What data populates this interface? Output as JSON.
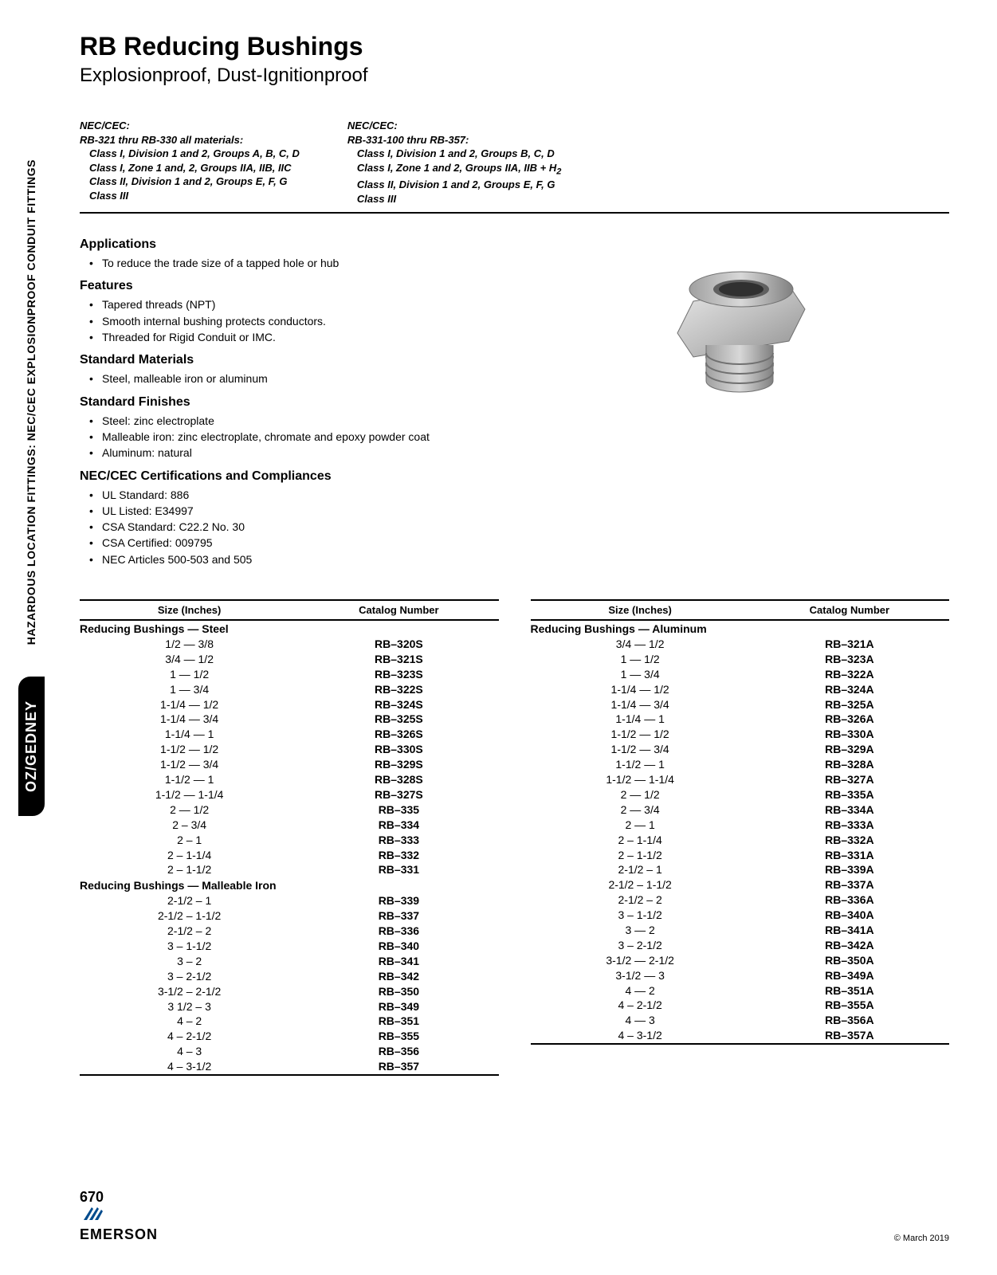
{
  "title": "RB Reducing Bushings",
  "subtitle": "Explosionproof, Dust-Ignitionproof",
  "sidebar_top": "HAZARDOUS LOCATION FITTINGS: NEC/CEC EXPLOSIONPROOF CONDUIT FITTINGS",
  "sidebar_logo": "OZ/GEDNEY",
  "nec1": {
    "head": "NEC/CEC:",
    "l1": "RB-321 thru RB-330 all materials:",
    "l2": "Class I, Division 1 and 2, Groups A, B, C, D",
    "l3": "Class I, Zone 1 and, 2, Groups IIA, IIB, IIC",
    "l4": "Class II, Division 1 and 2, Groups E, F, G",
    "l5": "Class III"
  },
  "nec2": {
    "head": "NEC/CEC:",
    "l1": "RB-331-100 thru RB-357:",
    "l2": "Class I, Division 1 and 2, Groups B, C, D",
    "l3": "Class I, Zone 1 and 2, Groups IIA, IIB + H",
    "l3sub": "2",
    "l4": "Class II, Division 1 and 2, Groups E, F, G",
    "l5": "Class III"
  },
  "sections": {
    "applications_h": "Applications",
    "applications": [
      "To reduce the trade size of a tapped hole or hub"
    ],
    "features_h": "Features",
    "features": [
      "Tapered threads (NPT)",
      "Smooth internal bushing protects conductors.",
      "Threaded for Rigid Conduit or IMC."
    ],
    "materials_h": "Standard Materials",
    "materials": [
      "Steel, malleable iron or aluminum"
    ],
    "finishes_h": "Standard Finishes",
    "finishes": [
      "Steel: zinc electroplate",
      "Malleable iron: zinc electroplate, chromate and epoxy powder coat",
      "Aluminum: natural"
    ],
    "cert_h": "NEC/CEC Certifications and Compliances",
    "cert": [
      "UL Standard: 886",
      "UL Listed: E34997",
      "CSA Standard: C22.2 No. 30",
      "CSA Certified: 009795",
      "NEC Articles 500-503 and 505"
    ]
  },
  "table_headers": {
    "size": "Size (Inches)",
    "cat": "Catalog Number"
  },
  "groups_left": [
    {
      "title": "Reducing Bushings — Steel",
      "rows": [
        [
          "1/2 — 3/8",
          "RB–320S"
        ],
        [
          "3/4 — 1/2",
          "RB–321S"
        ],
        [
          "1 — 1/2",
          "RB–323S"
        ],
        [
          "1 — 3/4",
          "RB–322S"
        ],
        [
          "1-1/4 — 1/2",
          "RB–324S"
        ],
        [
          "1-1/4 — 3/4",
          "RB–325S"
        ],
        [
          "1-1/4 — 1",
          "RB–326S"
        ],
        [
          "1-1/2 — 1/2",
          "RB–330S"
        ],
        [
          "1-1/2 — 3/4",
          "RB–329S"
        ],
        [
          "1-1/2 — 1",
          "RB–328S"
        ],
        [
          "1-1/2 — 1-1/4",
          "RB–327S"
        ],
        [
          "2 — 1/2",
          "RB–335"
        ],
        [
          "2 – 3/4",
          "RB–334"
        ],
        [
          "2 – 1",
          "RB–333"
        ],
        [
          "2 – 1-1/4",
          "RB–332"
        ],
        [
          "2 – 1-1/2",
          "RB–331"
        ]
      ]
    },
    {
      "title": "Reducing Bushings — Malleable Iron",
      "rows": [
        [
          "2-1/2 – 1",
          "RB–339"
        ],
        [
          "2-1/2 – 1-1/2",
          "RB–337"
        ],
        [
          "2-1/2 – 2",
          "RB–336"
        ],
        [
          "3 – 1-1/2",
          "RB–340"
        ],
        [
          "3 – 2",
          "RB–341"
        ],
        [
          "3 – 2-1/2",
          "RB–342"
        ],
        [
          "3-1/2 – 2-1/2",
          "RB–350"
        ],
        [
          "3 1/2 – 3",
          "RB–349"
        ],
        [
          "4 – 2",
          "RB–351"
        ],
        [
          "4 – 2-1/2",
          "RB–355"
        ],
        [
          "4 – 3",
          "RB–356"
        ],
        [
          "4 – 3-1/2",
          "RB–357"
        ]
      ]
    }
  ],
  "groups_right": [
    {
      "title": "Reducing Bushings — Aluminum",
      "rows": [
        [
          "3/4 — 1/2",
          "RB–321A"
        ],
        [
          "1 — 1/2",
          "RB–323A"
        ],
        [
          "1 — 3/4",
          "RB–322A"
        ],
        [
          "1-1/4 — 1/2",
          "RB–324A"
        ],
        [
          "1-1/4 — 3/4",
          "RB–325A"
        ],
        [
          "1-1/4 — 1",
          "RB–326A"
        ],
        [
          "1-1/2 — 1/2",
          "RB–330A"
        ],
        [
          "1-1/2 — 3/4",
          "RB–329A"
        ],
        [
          "1-1/2 — 1",
          "RB–328A"
        ],
        [
          "1-1/2 — 1-1/4",
          "RB–327A"
        ],
        [
          "2 — 1/2",
          "RB–335A"
        ],
        [
          "2 — 3/4",
          "RB–334A"
        ],
        [
          "2 — 1",
          "RB–333A"
        ],
        [
          "2 – 1-1/4",
          "RB–332A"
        ],
        [
          "2 – 1-1/2",
          "RB–331A"
        ],
        [
          "2-1/2 – 1",
          "RB–339A"
        ],
        [
          "2-1/2 – 1-1/2",
          "RB–337A"
        ],
        [
          "2-1/2 – 2",
          "RB–336A"
        ],
        [
          "3 – 1-1/2",
          "RB–340A"
        ],
        [
          "3 — 2",
          "RB–341A"
        ],
        [
          "3 – 2-1/2",
          "RB–342A"
        ],
        [
          "3-1/2 — 2-1/2",
          "RB–350A"
        ],
        [
          "3-1/2 — 3",
          "RB–349A"
        ],
        [
          "4 — 2",
          "RB–351A"
        ],
        [
          "4 – 2-1/2",
          "RB–355A"
        ],
        [
          "4 — 3",
          "RB–356A"
        ],
        [
          "4 – 3-1/2",
          "RB–357A"
        ]
      ]
    }
  ],
  "page_number": "670",
  "emerson": "EMERSON",
  "copyright": "© March 2019",
  "colors": {
    "text": "#000000",
    "bg": "#ffffff",
    "rule": "#000000",
    "sidebar_bg": "#000000",
    "sidebar_fg": "#ffffff",
    "bushing_light": "#d8d8d8",
    "bushing_mid": "#b0b0b0",
    "bushing_dark": "#888888"
  }
}
